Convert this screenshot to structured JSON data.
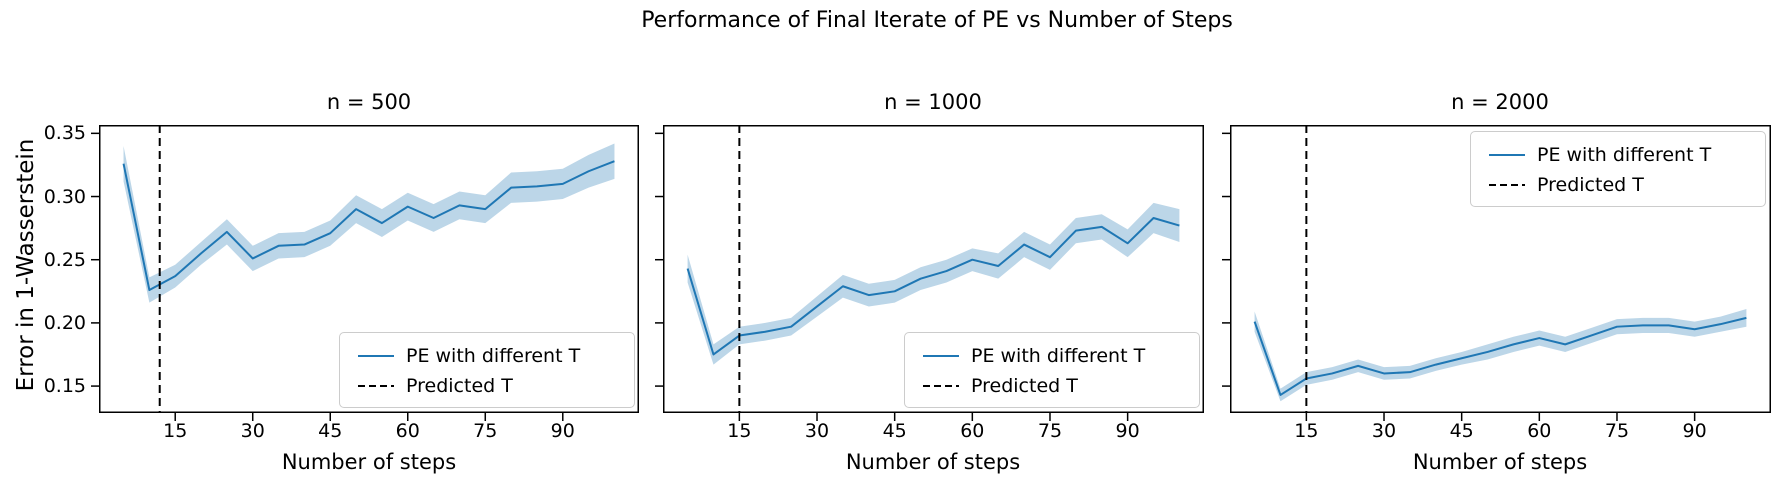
{
  "chart_data": {
    "type": "line",
    "title": "Performance of Final Iterate of PE vs Number of Steps",
    "xlabel": "Number of steps",
    "ylabel": "Error in 1-Wasserstein",
    "legend_entries": [
      "PE with different T",
      "Predicted T"
    ],
    "legend_position_hint": [
      "lower-right",
      "lower-right",
      "upper-right"
    ],
    "x": [
      5,
      10,
      15,
      20,
      25,
      30,
      35,
      40,
      45,
      50,
      55,
      60,
      65,
      70,
      75,
      80,
      85,
      90,
      95,
      100
    ],
    "xticks": [
      15,
      30,
      45,
      60,
      75,
      90
    ],
    "yticks": [
      0.15,
      0.2,
      0.25,
      0.3,
      0.35
    ],
    "xlim": [
      0.25,
      104.75
    ],
    "ylim": [
      0.1287,
      0.3566
    ],
    "grid": false,
    "colors": {
      "line": "#1f77b4",
      "band": "#bcd6e8",
      "predicted_t": "#000000"
    },
    "subplots": [
      {
        "title": "n = 500",
        "predicted_t": 12,
        "values": [
          0.326,
          0.226,
          0.237,
          0.255,
          0.272,
          0.251,
          0.261,
          0.262,
          0.271,
          0.29,
          0.279,
          0.292,
          0.283,
          0.293,
          0.29,
          0.307,
          0.308,
          0.31,
          0.32,
          0.328
        ],
        "band_halfwidth": [
          0.014,
          0.01,
          0.009,
          0.009,
          0.01,
          0.01,
          0.01,
          0.01,
          0.01,
          0.011,
          0.011,
          0.011,
          0.011,
          0.011,
          0.011,
          0.012,
          0.012,
          0.012,
          0.013,
          0.014
        ]
      },
      {
        "title": "n = 1000",
        "predicted_t": 15,
        "values": [
          0.243,
          0.175,
          0.19,
          0.193,
          0.197,
          0.213,
          0.229,
          0.222,
          0.225,
          0.235,
          0.241,
          0.25,
          0.245,
          0.262,
          0.252,
          0.273,
          0.276,
          0.263,
          0.283,
          0.277
        ],
        "band_halfwidth": [
          0.011,
          0.008,
          0.007,
          0.007,
          0.007,
          0.008,
          0.009,
          0.009,
          0.009,
          0.009,
          0.009,
          0.009,
          0.01,
          0.01,
          0.01,
          0.01,
          0.01,
          0.011,
          0.012,
          0.013
        ]
      },
      {
        "title": "n = 2000",
        "predicted_t": 15,
        "values": [
          0.201,
          0.143,
          0.156,
          0.16,
          0.166,
          0.16,
          0.161,
          0.167,
          0.172,
          0.177,
          0.183,
          0.188,
          0.183,
          0.19,
          0.197,
          0.198,
          0.198,
          0.195,
          0.199,
          0.204
        ],
        "band_halfwidth": [
          0.008,
          0.005,
          0.005,
          0.005,
          0.005,
          0.005,
          0.005,
          0.005,
          0.005,
          0.006,
          0.006,
          0.006,
          0.006,
          0.006,
          0.006,
          0.006,
          0.006,
          0.006,
          0.006,
          0.007
        ]
      }
    ]
  }
}
